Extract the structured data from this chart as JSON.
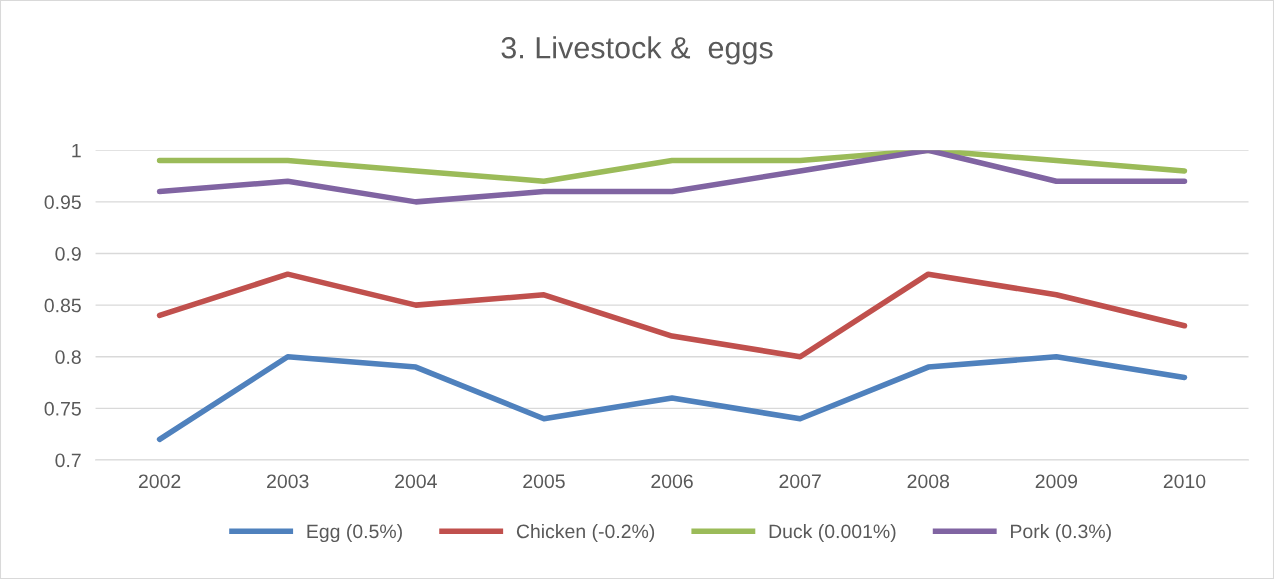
{
  "chart_data": {
    "type": "line",
    "title": "3. Livestock &  eggs",
    "categories": [
      "2002",
      "2003",
      "2004",
      "2005",
      "2006",
      "2007",
      "2008",
      "2009",
      "2010"
    ],
    "series": [
      {
        "name": "Egg (0.5%)",
        "color": "#4f81bd",
        "values": [
          0.72,
          0.8,
          0.79,
          0.74,
          0.76,
          0.74,
          0.79,
          0.8,
          0.78
        ]
      },
      {
        "name": "Chicken (-0.2%)",
        "color": "#c0504d",
        "values": [
          0.84,
          0.88,
          0.85,
          0.86,
          0.82,
          0.8,
          0.88,
          0.86,
          0.83
        ]
      },
      {
        "name": "Duck (0.001%)",
        "color": "#9bbb59",
        "values": [
          0.99,
          0.99,
          0.98,
          0.97,
          0.99,
          0.99,
          1.0,
          0.99,
          0.98
        ]
      },
      {
        "name": "Pork (0.3%)",
        "color": "#8064a2",
        "values": [
          0.96,
          0.97,
          0.95,
          0.96,
          0.96,
          0.98,
          1.0,
          0.97,
          0.97
        ]
      }
    ],
    "ylim": [
      0.7,
      1
    ],
    "yticks": [
      0.7,
      0.75,
      0.8,
      0.85,
      0.9,
      0.95,
      1
    ],
    "grid": "y",
    "legend": "bottom",
    "marker": "none",
    "line_style": "solid"
  }
}
